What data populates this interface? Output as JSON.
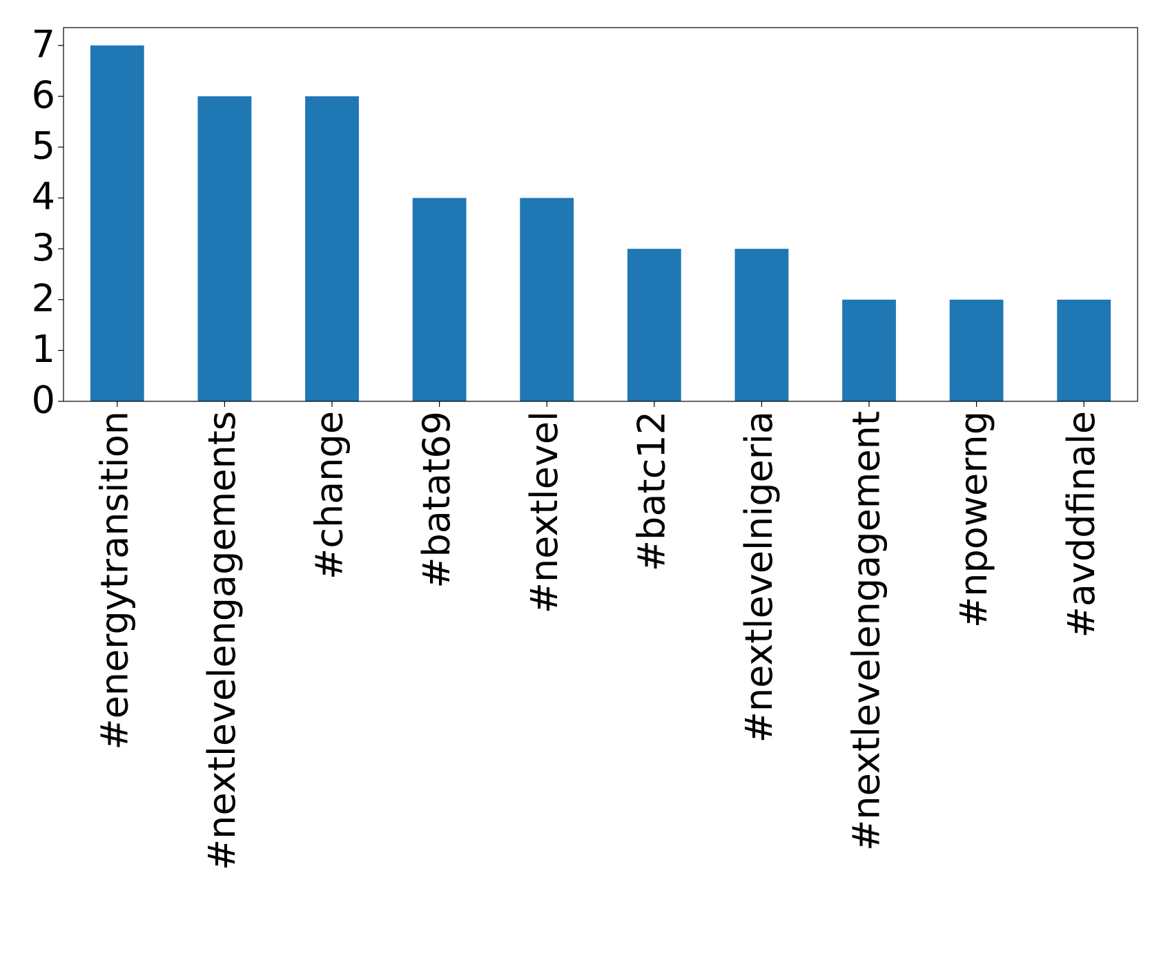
{
  "chart_data": {
    "type": "bar",
    "categories": [
      "#energytransition",
      "#nextlevelengagements",
      "#change",
      "#batat69",
      "#nextlevel",
      "#batc12",
      "#nextlevelnigeria",
      "#nextlevelengagement",
      "#npowerng",
      "#avddfinale"
    ],
    "values": [
      7,
      6,
      6,
      4,
      4,
      3,
      3,
      2,
      2,
      2
    ],
    "color": "#1f77b4",
    "ylim": [
      0,
      7.35
    ],
    "yticks": [
      0,
      1,
      2,
      3,
      4,
      5,
      6,
      7
    ],
    "grid": false
  }
}
